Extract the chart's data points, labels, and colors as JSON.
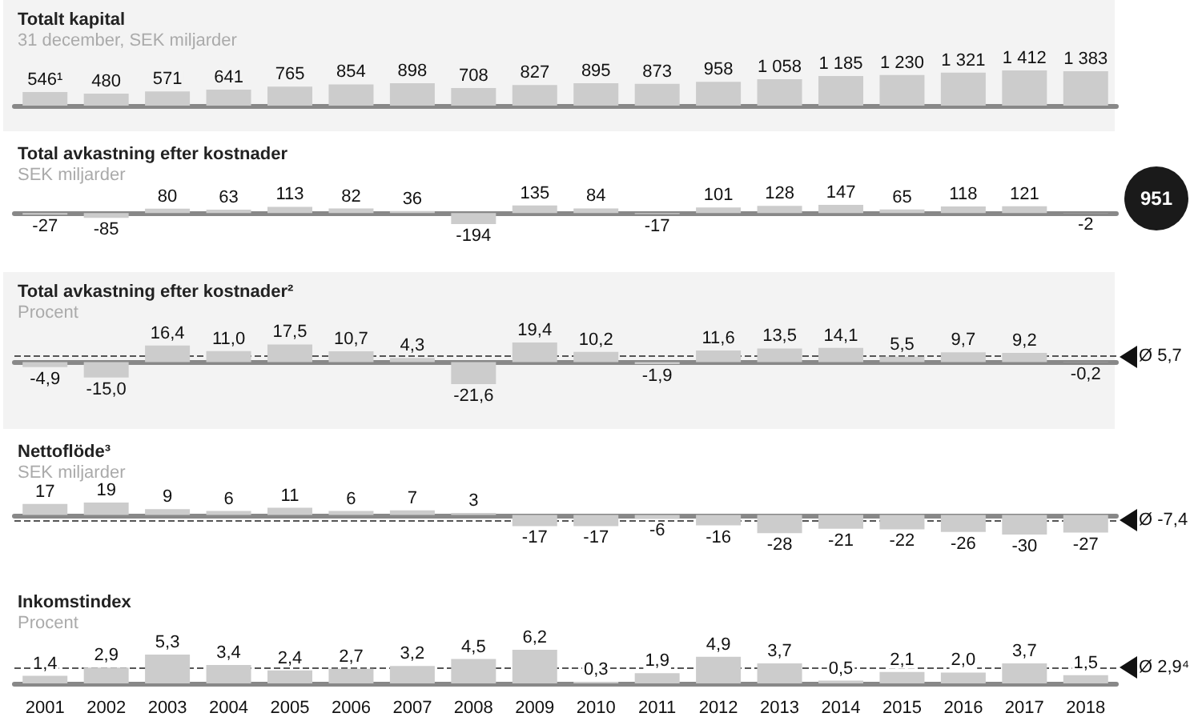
{
  "chart_data": [
    {
      "type": "bar",
      "title": "Totalt kapital",
      "subtitle": "31 december, SEK miljarder",
      "categories": [
        "2001",
        "2002",
        "2003",
        "2004",
        "2005",
        "2006",
        "2007",
        "2008",
        "2009",
        "2010",
        "2011",
        "2012",
        "2013",
        "2014",
        "2015",
        "2016",
        "2017",
        "2018"
      ],
      "values": [
        546,
        480,
        571,
        641,
        765,
        854,
        898,
        708,
        827,
        895,
        873,
        958,
        1058,
        1185,
        1230,
        1321,
        1412,
        1383
      ],
      "value_labels": [
        "546¹",
        "480",
        "571",
        "641",
        "765",
        "854",
        "898",
        "708",
        "827",
        "895",
        "873",
        "958",
        "1 058",
        "1 185",
        "1 230",
        "1 321",
        "1 412",
        "1 383"
      ],
      "color": "#cccccc",
      "tick_labels": false
    },
    {
      "type": "bar",
      "title": "Total avkastning efter kostnader",
      "subtitle": "SEK miljarder",
      "categories": [
        "2001",
        "2002",
        "2003",
        "2004",
        "2005",
        "2006",
        "2007",
        "2008",
        "2009",
        "2010",
        "2011",
        "2012",
        "2013",
        "2014",
        "2015",
        "2016",
        "2017",
        "2018"
      ],
      "values": [
        -27,
        -85,
        80,
        63,
        113,
        82,
        36,
        -194,
        135,
        84,
        -17,
        101,
        128,
        147,
        65,
        118,
        121,
        -2
      ],
      "value_labels": [
        "-27",
        "-85",
        "80",
        "63",
        "113",
        "82",
        "36",
        "-194",
        "135",
        "84",
        "-17",
        "101",
        "128",
        "147",
        "65",
        "118",
        "121",
        "-2"
      ],
      "color": "#cccccc",
      "tick_labels": false,
      "annotations": [
        "951"
      ]
    },
    {
      "type": "bar",
      "title": "Total avkastning efter kostnader²",
      "subtitle": "Procent",
      "categories": [
        "2001",
        "2002",
        "2003",
        "2004",
        "2005",
        "2006",
        "2007",
        "2008",
        "2009",
        "2010",
        "2011",
        "2012",
        "2013",
        "2014",
        "2015",
        "2016",
        "2017",
        "2018"
      ],
      "values": [
        -4.9,
        -15.0,
        16.4,
        11.0,
        17.5,
        10.7,
        4.3,
        -21.6,
        19.4,
        10.2,
        -1.9,
        11.6,
        13.5,
        14.1,
        5.5,
        9.7,
        9.2,
        -0.2
      ],
      "value_labels": [
        "-4,9",
        "-15,0",
        "16,4",
        "11,0",
        "17,5",
        "10,7",
        "4,3",
        "-21,6",
        "19,4",
        "10,2",
        "-1,9",
        "11,6",
        "13,5",
        "14,1",
        "5,5",
        "9,7",
        "9,2",
        "-0,2"
      ],
      "color": "#cccccc",
      "tick_labels": false,
      "ref_lines": [
        {
          "axis": "y",
          "value": 5.7,
          "label": "Ø 5,7",
          "line_style": "dashed",
          "color": "#555555"
        }
      ]
    },
    {
      "type": "bar",
      "title": "Nettoflöde³",
      "subtitle": "SEK miljarder",
      "categories": [
        "2001",
        "2002",
        "2003",
        "2004",
        "2005",
        "2006",
        "2007",
        "2008",
        "2009",
        "2010",
        "2011",
        "2012",
        "2013",
        "2014",
        "2015",
        "2016",
        "2017",
        "2018"
      ],
      "values": [
        17,
        19,
        9,
        6,
        11,
        6,
        7,
        3,
        -17,
        -17,
        -6,
        -16,
        -28,
        -21,
        -22,
        -26,
        -30,
        -27
      ],
      "value_labels": [
        "17",
        "19",
        "9",
        "6",
        "11",
        "6",
        "7",
        "3",
        "-17",
        "-17",
        "-6",
        "-16",
        "-28",
        "-21",
        "-22",
        "-26",
        "-30",
        "-27"
      ],
      "color": "#cccccc",
      "tick_labels": false,
      "ref_lines": [
        {
          "axis": "y",
          "value": -7.4,
          "label": "Ø -7,4",
          "line_style": "dashed",
          "color": "#555555"
        }
      ]
    },
    {
      "type": "bar",
      "title": "Inkomstindex",
      "subtitle": "Procent",
      "categories": [
        "2001",
        "2002",
        "2003",
        "2004",
        "2005",
        "2006",
        "2007",
        "2008",
        "2009",
        "2010",
        "2011",
        "2012",
        "2013",
        "2014",
        "2015",
        "2016",
        "2017",
        "2018"
      ],
      "values": [
        1.4,
        2.9,
        5.3,
        3.4,
        2.4,
        2.7,
        3.2,
        4.5,
        6.2,
        0.3,
        1.9,
        4.9,
        3.7,
        0.5,
        2.1,
        2.0,
        3.7,
        1.5
      ],
      "value_labels": [
        "1,4",
        "2,9",
        "5,3",
        "3,4",
        "2,4",
        "2,7",
        "3,2",
        "4,5",
        "6,2",
        "0,3",
        "1,9",
        "4,9",
        "3,7",
        "0,5",
        "2,1",
        "2,0",
        "3,7",
        "1,5"
      ],
      "color": "#cccccc",
      "tick_labels": "x",
      "ref_lines": [
        {
          "axis": "y",
          "value": 2.9,
          "label": "Ø 2,9⁴",
          "line_style": "dashed",
          "color": "#555555"
        }
      ]
    }
  ]
}
